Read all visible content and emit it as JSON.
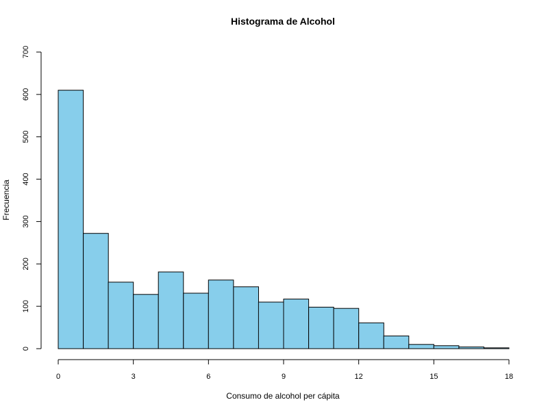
{
  "chart_data": {
    "type": "bar",
    "title": "Histograma de Alcohol",
    "xlabel": "Consumo de alcohol per cápita",
    "ylabel": "Frecuencia",
    "bin_edges": [
      0,
      1,
      2,
      3,
      4,
      5,
      6,
      7,
      8,
      9,
      10,
      11,
      12,
      13,
      14,
      15,
      16,
      17,
      18
    ],
    "values": [
      610,
      272,
      157,
      128,
      181,
      131,
      162,
      146,
      110,
      117,
      98,
      95,
      61,
      30,
      10,
      7,
      4,
      2
    ],
    "xlim": [
      0,
      18
    ],
    "ylim": [
      0,
      700
    ],
    "x_ticks": [
      0,
      3,
      6,
      9,
      12,
      15,
      18
    ],
    "y_ticks": [
      0,
      100,
      200,
      300,
      400,
      500,
      600,
      700
    ],
    "bar_color": "#87CEEB",
    "grid": false
  }
}
